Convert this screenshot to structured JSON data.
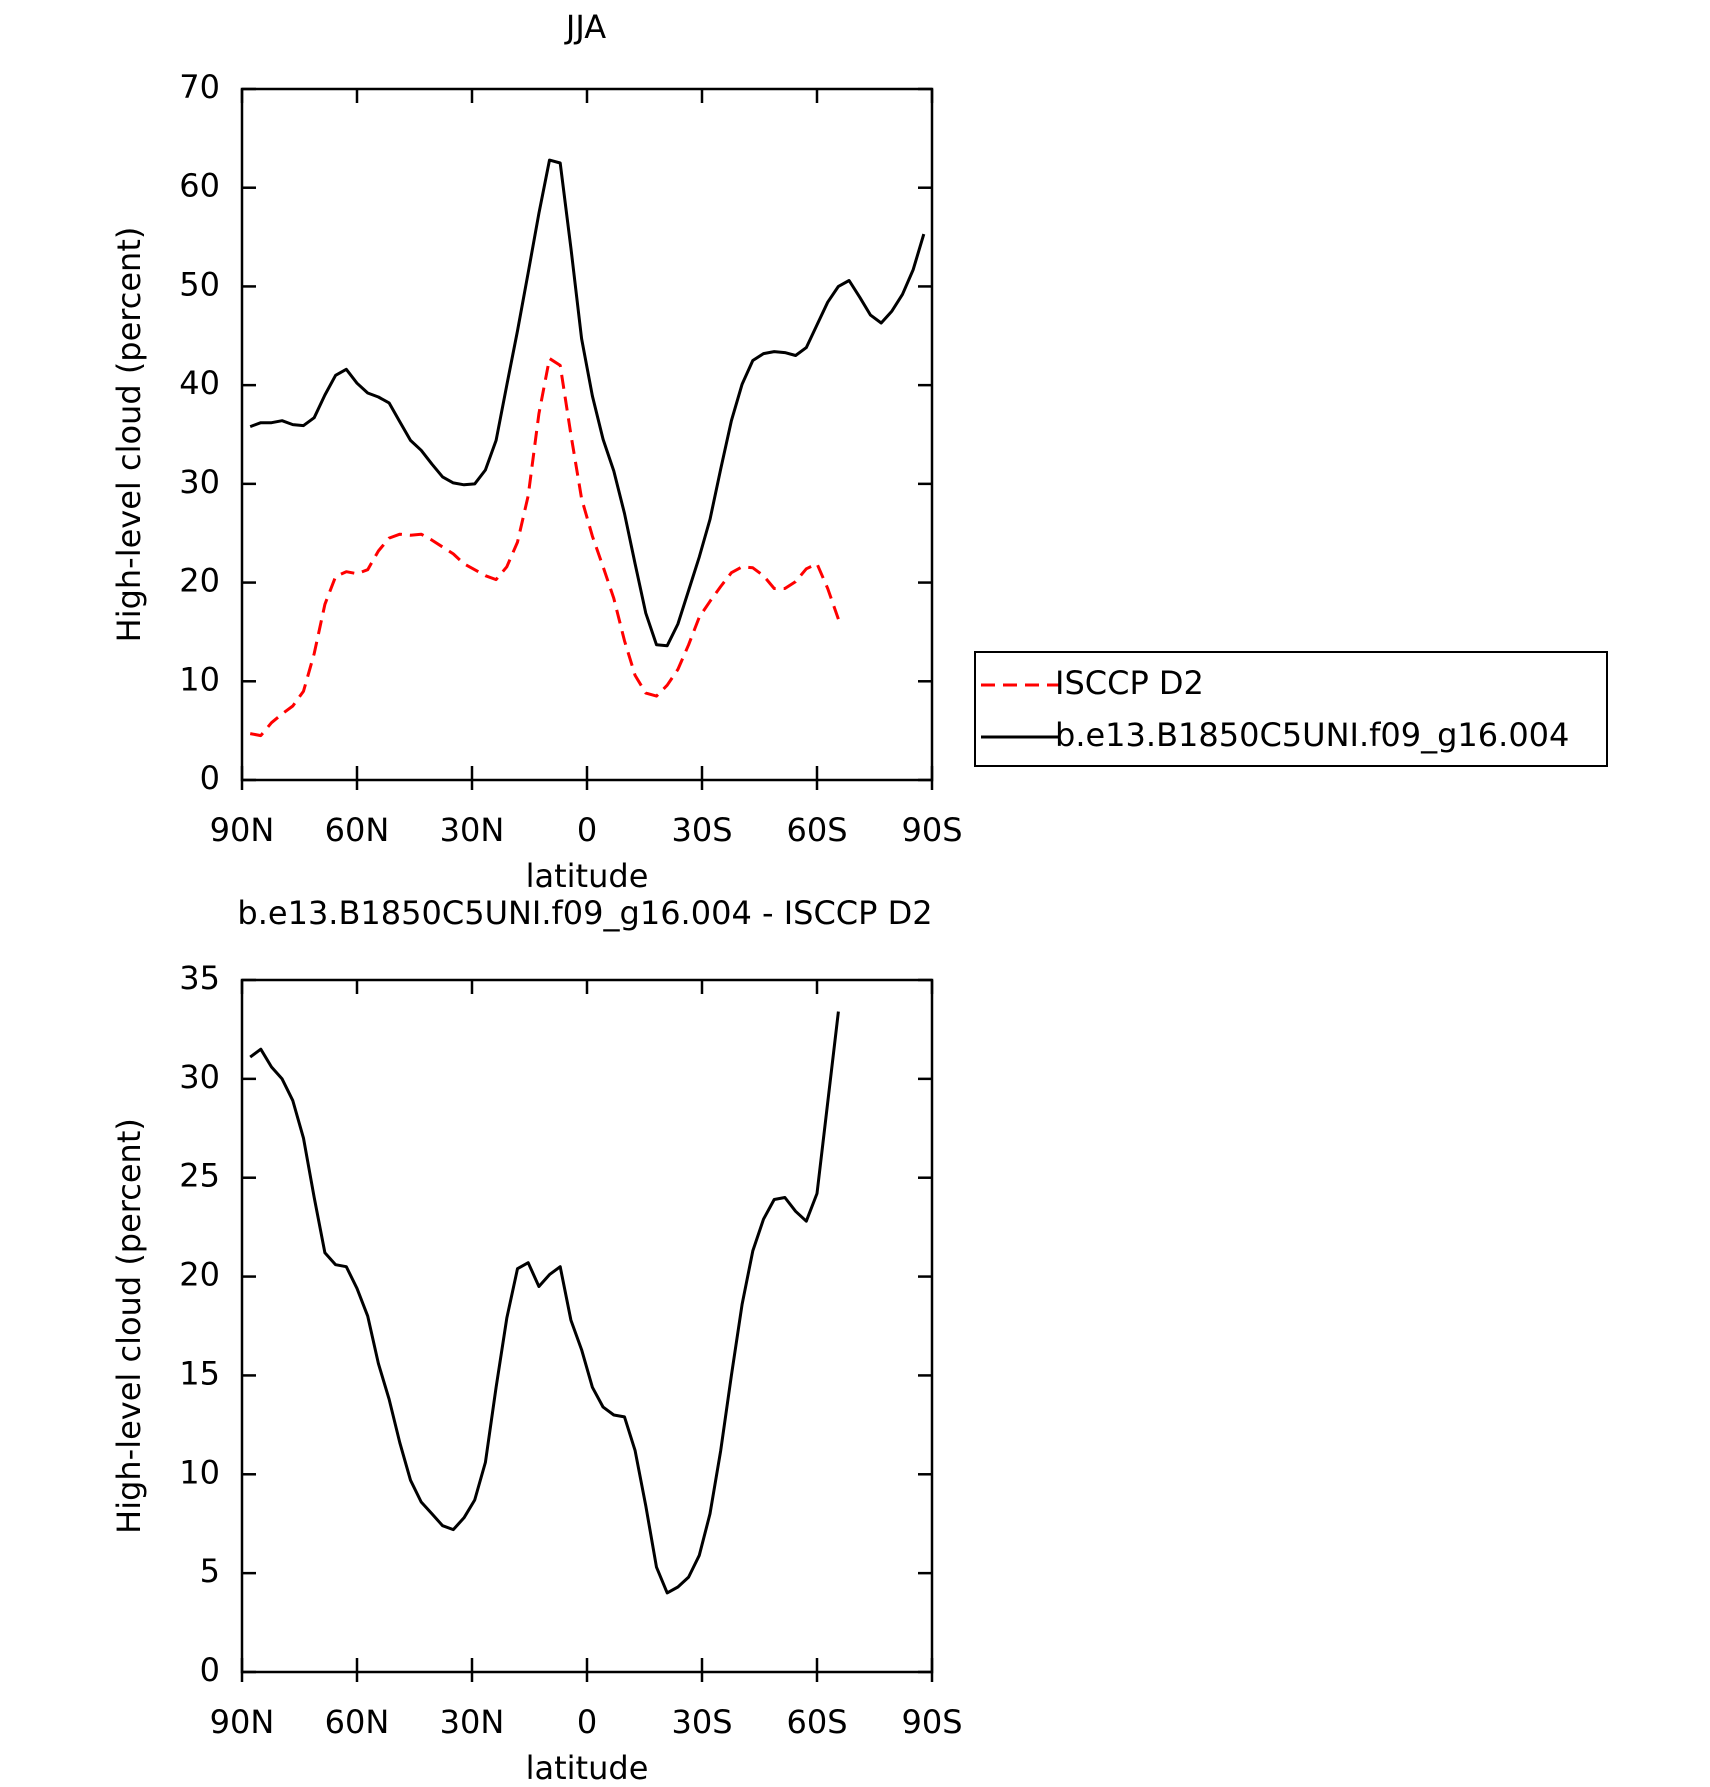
{
  "chart_data": [
    {
      "type": "line",
      "title": "JJA",
      "xlabel": "latitude",
      "ylabel": "High-level cloud (percent)",
      "x": [
        87.86,
        85.1,
        82.31,
        79.53,
        76.74,
        73.95,
        71.16,
        68.37,
        65.58,
        62.79,
        60.0,
        57.21,
        54.42,
        51.63,
        48.84,
        46.05,
        43.26,
        40.46,
        37.67,
        34.88,
        32.09,
        29.3,
        26.51,
        23.72,
        20.93,
        18.14,
        15.35,
        12.56,
        9.77,
        6.98,
        4.19,
        1.4,
        -1.4,
        -4.19,
        -6.98,
        -9.77,
        -12.56,
        -15.35,
        -18.14,
        -20.93,
        -23.72,
        -26.51,
        -29.3,
        -32.09,
        -34.88,
        -37.67,
        -40.46,
        -43.26,
        -46.05,
        -48.84,
        -51.63,
        -54.42,
        -57.21,
        -60.0,
        -62.79,
        -65.58,
        -68.37,
        -71.16,
        -73.95,
        -76.74,
        -79.53,
        -82.31,
        -85.1,
        -87.86
      ],
      "series": [
        {
          "name": "ISCCP D2",
          "color": "#ff0000",
          "dash": true,
          "values": [
            4.7,
            4.5,
            5.8,
            6.7,
            7.5,
            9.0,
            12.8,
            17.8,
            20.6,
            21.1,
            20.9,
            21.3,
            23.2,
            24.5,
            24.9,
            24.8,
            24.9,
            24.3,
            23.6,
            22.9,
            21.9,
            21.3,
            20.7,
            20.3,
            21.6,
            24.1,
            28.8,
            37.1,
            42.7,
            42.0,
            35.0,
            28.5,
            24.7,
            21.6,
            18.4,
            14.1,
            10.6,
            8.8,
            8.5,
            9.6,
            11.2,
            13.7,
            16.5,
            18.1,
            19.6,
            21.0,
            21.6,
            21.5,
            20.7,
            19.4,
            19.4,
            20.1,
            21.4,
            21.9,
            19.4,
            16.3,
            null,
            null,
            null,
            null,
            null,
            null,
            null,
            null
          ]
        },
        {
          "name": "b.e13.B1850C5UNI.f09_g16.004",
          "color": "#000000",
          "dash": false,
          "values": [
            35.8,
            36.2,
            36.2,
            36.4,
            36.0,
            35.9,
            36.7,
            39.0,
            41.0,
            41.6,
            40.2,
            39.2,
            38.8,
            38.2,
            36.3,
            34.4,
            33.4,
            32.0,
            30.7,
            30.1,
            29.9,
            30.0,
            31.4,
            34.4,
            40.0,
            45.5,
            51.4,
            57.4,
            62.8,
            62.5,
            53.9,
            44.7,
            38.9,
            34.5,
            31.3,
            27.0,
            21.9,
            16.9,
            13.7,
            13.6,
            15.8,
            19.2,
            22.6,
            26.4,
            31.5,
            36.4,
            40.1,
            42.5,
            43.2,
            43.4,
            43.3,
            43.0,
            43.8,
            46.1,
            48.4,
            50.0,
            50.6,
            48.9,
            47.1,
            46.3,
            47.5,
            49.2,
            51.7,
            55.3
          ]
        }
      ],
      "xlim": [
        90,
        -90
      ],
      "xticks": [
        {
          "value": 90,
          "label": "90N"
        },
        {
          "value": 60,
          "label": "60N"
        },
        {
          "value": 30,
          "label": "30N"
        },
        0,
        {
          "value": -30,
          "label": "30S"
        },
        {
          "value": -60,
          "label": "60S"
        },
        {
          "value": -90,
          "label": "90S"
        }
      ],
      "ylim": [
        0,
        70
      ],
      "yticks": [
        0,
        10,
        20,
        30,
        40,
        50,
        60,
        70
      ],
      "legend": "right"
    },
    {
      "type": "line",
      "title": "b.e13.B1850C5UNI.f09_g16.004 - ISCCP D2",
      "xlabel": "latitude",
      "ylabel": "High-level cloud (percent)",
      "x": [
        87.86,
        85.1,
        82.31,
        79.53,
        76.74,
        73.95,
        71.16,
        68.37,
        65.58,
        62.79,
        60.0,
        57.21,
        54.42,
        51.63,
        48.84,
        46.05,
        43.26,
        40.46,
        37.67,
        34.88,
        32.09,
        29.3,
        26.51,
        23.72,
        20.93,
        18.14,
        15.35,
        12.56,
        9.77,
        6.98,
        4.19,
        1.4,
        -1.4,
        -4.19,
        -6.98,
        -9.77,
        -12.56,
        -15.35,
        -18.14,
        -20.93,
        -23.72,
        -26.51,
        -29.3,
        -32.09,
        -34.88,
        -37.67,
        -40.46,
        -43.26,
        -46.05,
        -48.84,
        -51.63,
        -54.42,
        -57.21,
        -60.0,
        -62.79,
        -65.58,
        -68.37,
        -71.16,
        -73.95,
        -76.74,
        -79.53,
        -82.31,
        -85.1,
        -87.86
      ],
      "series": [
        {
          "color": "#000000",
          "dash": false,
          "values": [
            31.1,
            31.5,
            30.6,
            30.0,
            28.9,
            27.0,
            24.0,
            21.2,
            20.6,
            20.5,
            19.4,
            18.0,
            15.6,
            13.8,
            11.6,
            9.7,
            8.6,
            8.0,
            7.4,
            7.2,
            7.8,
            8.7,
            10.6,
            14.4,
            17.9,
            20.4,
            20.7,
            19.5,
            20.1,
            20.5,
            17.8,
            16.3,
            14.4,
            13.4,
            13.0,
            12.9,
            11.2,
            8.4,
            5.3,
            4.0,
            4.3,
            4.8,
            5.9,
            8.0,
            11.2,
            15.0,
            18.6,
            21.3,
            22.9,
            23.9,
            24.0,
            23.3,
            22.8,
            24.2,
            28.8,
            33.4,
            null,
            null,
            null,
            null,
            null,
            null,
            null,
            null
          ]
        }
      ],
      "xlim": [
        90,
        -90
      ],
      "xticks": [
        {
          "value": 90,
          "label": "90N"
        },
        {
          "value": 60,
          "label": "60N"
        },
        {
          "value": 30,
          "label": "30N"
        },
        0,
        {
          "value": -30,
          "label": "30S"
        },
        {
          "value": -60,
          "label": "60S"
        },
        {
          "value": -90,
          "label": "90S"
        }
      ],
      "ylim": [
        0,
        35
      ],
      "yticks": [
        0,
        5,
        10,
        15,
        20,
        25,
        30,
        35
      ]
    }
  ]
}
